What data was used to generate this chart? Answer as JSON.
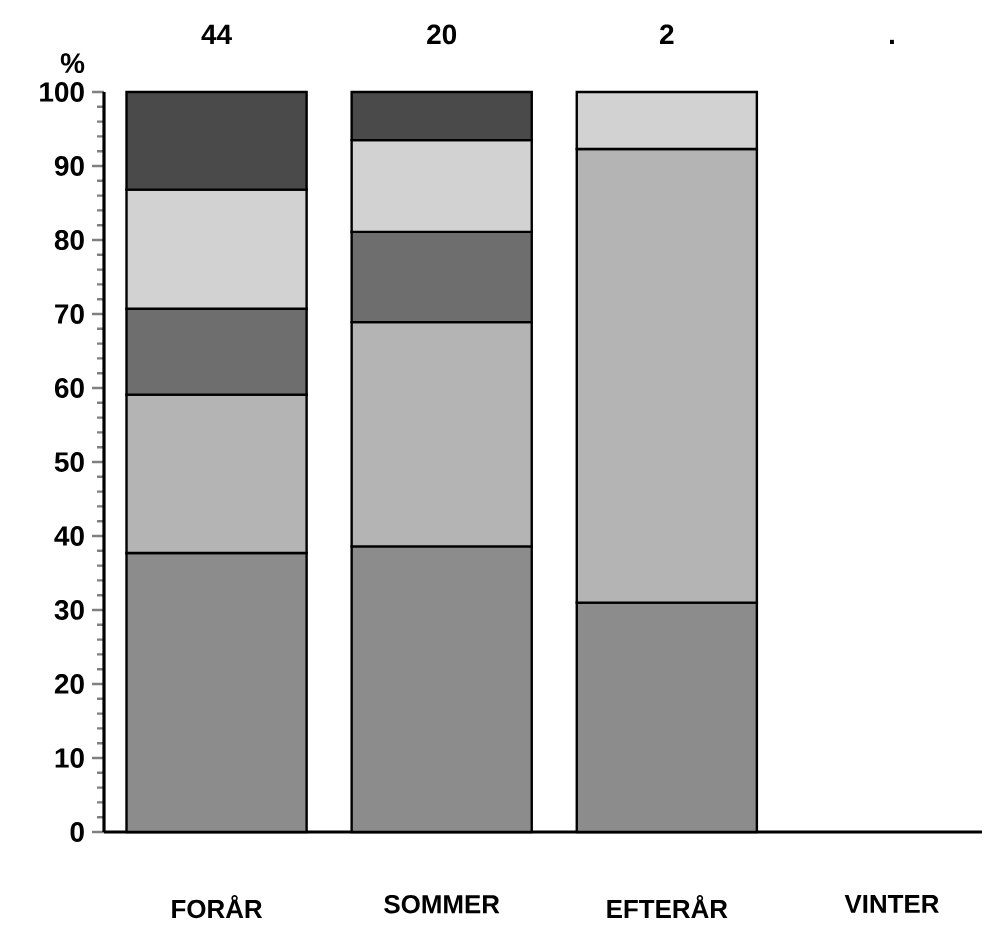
{
  "chart_data": {
    "type": "bar",
    "stacked": true,
    "ylabel": "%",
    "categories": [
      "FORÅR",
      "SOMMER",
      "EFTERÅR",
      "VINTER"
    ],
    "series": [
      {
        "color": "#8c8c8c",
        "values": [
          37.7,
          38.6,
          31.0,
          null
        ]
      },
      {
        "color": "#b4b4b4",
        "values": [
          21.4,
          30.3,
          61.3,
          null
        ]
      },
      {
        "color": "#6e6e6e",
        "values": [
          11.6,
          12.2,
          null,
          null
        ]
      },
      {
        "color": "#d2d2d2",
        "values": [
          16.1,
          12.4,
          7.7,
          null
        ]
      },
      {
        "color": "#4a4a4a",
        "values": [
          13.2,
          6.5,
          null,
          null
        ]
      }
    ],
    "annotations": [
      "44",
      "20",
      "2",
      "."
    ],
    "ylim": [
      0,
      100
    ],
    "yticks": [
      0,
      10,
      20,
      30,
      40,
      50,
      60,
      70,
      80,
      90,
      100
    ],
    "grid": false
  }
}
